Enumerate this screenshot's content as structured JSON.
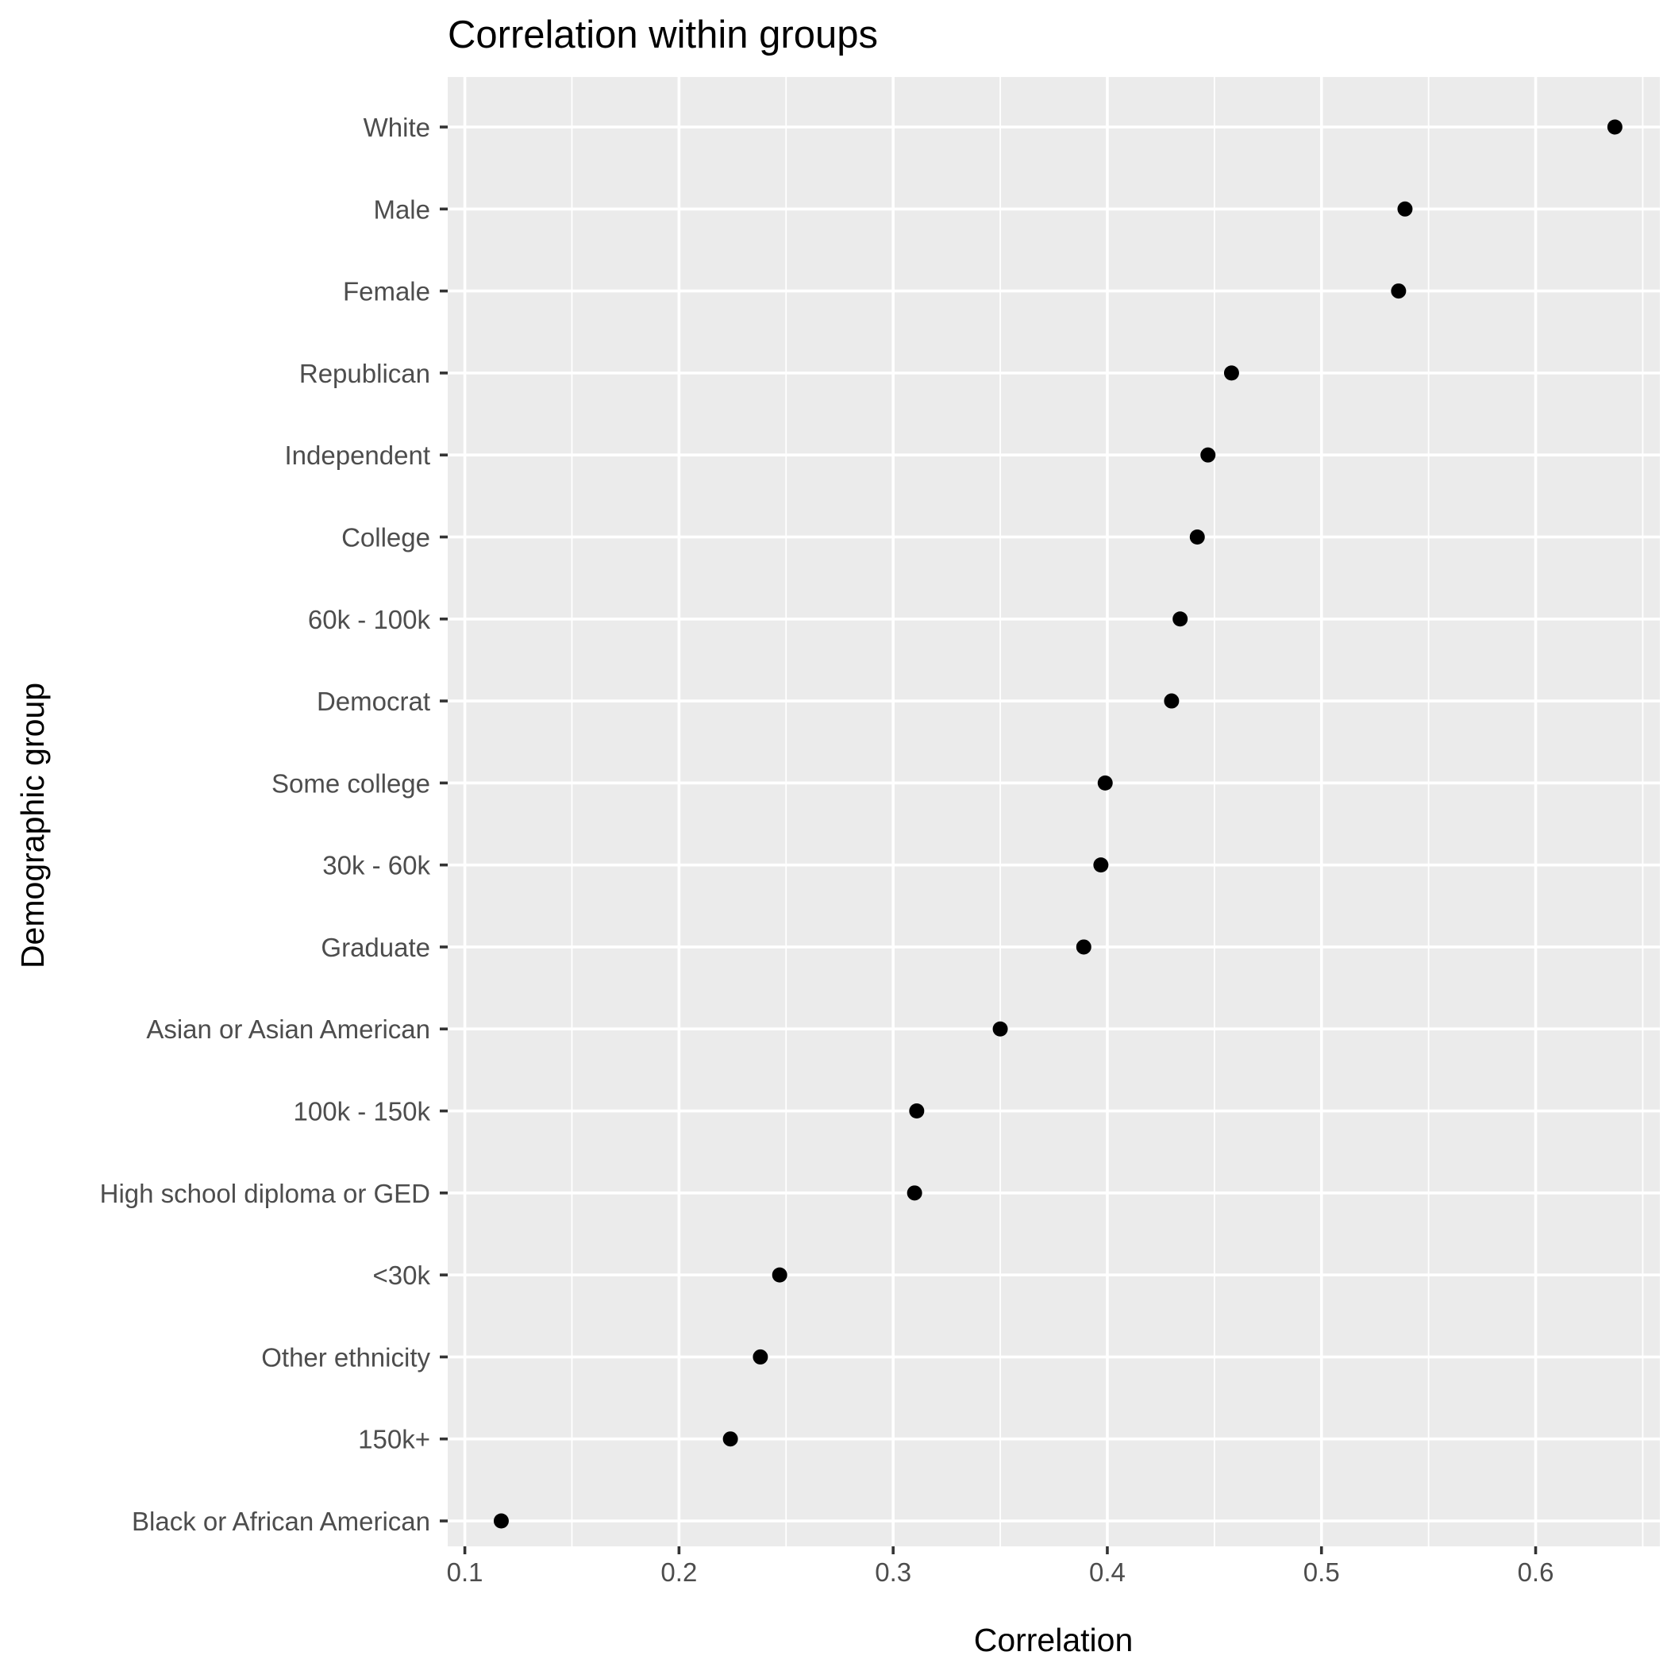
{
  "chart_data": {
    "type": "scatter",
    "title": "Correlation within groups",
    "xlabel": "Correlation",
    "ylabel": "Demographic group",
    "xlim": [
      0.092,
      0.658
    ],
    "x_ticks": [
      0.1,
      0.2,
      0.3,
      0.4,
      0.5,
      0.6
    ],
    "x_tick_labels": [
      "0.1",
      "0.2",
      "0.3",
      "0.4",
      "0.5",
      "0.6"
    ],
    "grid": true,
    "legend": "none",
    "point_color": "#000000",
    "panel_color": "#ebebeb",
    "categories": [
      "White",
      "Male",
      "Female",
      "Republican",
      "Independent",
      "College",
      "60k - 100k",
      "Democrat",
      "Some college",
      "30k - 60k",
      "Graduate",
      "Asian or Asian American",
      "100k - 150k",
      "High school diploma or GED",
      "<30k",
      "Other ethnicity",
      "150k+",
      "Black or African American"
    ],
    "values": [
      0.637,
      0.539,
      0.536,
      0.458,
      0.447,
      0.442,
      0.434,
      0.43,
      0.399,
      0.397,
      0.389,
      0.35,
      0.311,
      0.31,
      0.247,
      0.238,
      0.224,
      0.117
    ]
  }
}
